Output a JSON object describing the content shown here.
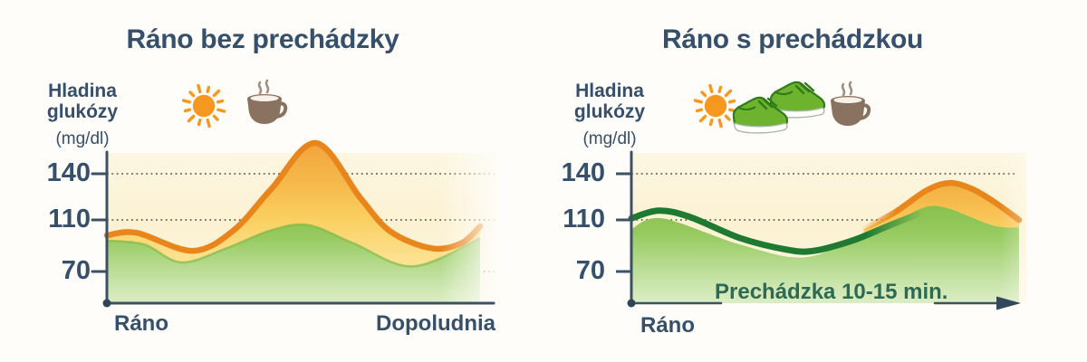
{
  "colors": {
    "title_text": "#36506b",
    "axis_text": "#36506b",
    "axis_line": "#3d5164",
    "annotation_text": "#2d6a55",
    "orange_line": "#e8861c",
    "yellow_fill": "#f9c95c",
    "green_band_fill": "#8ac24f",
    "dark_green_line": "#1e7a31",
    "plot_background_cream": "#fcf2d5",
    "sun_icon_color": "#f6981f",
    "coffee_cup_color": "#8a7260",
    "shoes_color": "#6db32d"
  },
  "charts": [
    {
      "title": "Ráno bez prechádzky",
      "y_axis": {
        "label": [
          "Hladina",
          "glukózy",
          "(mg/dl)"
        ],
        "ticks": [
          "140",
          "110",
          "70"
        ]
      },
      "x_axis": {
        "start_label": "Ráno",
        "end_label": "Dopoludnia"
      },
      "icons": [
        "sun-icon",
        "coffee-cup-icon"
      ],
      "annotation": ""
    },
    {
      "title": "Ráno s prechádzkou",
      "y_axis": {
        "label": [
          "Hladina",
          "glukózy",
          "(mg/dl)"
        ],
        "ticks": [
          "140",
          "110",
          "70"
        ]
      },
      "x_axis": {
        "start_label": "Ráno",
        "end_label": ""
      },
      "icons": [
        "sun-icon",
        "running-shoes-icon",
        "coffee-cup-icon"
      ],
      "annotation": "Prechádzka 10-15 min."
    }
  ],
  "chart_data": [
    {
      "type": "area",
      "title": "Ráno bez prechádzky",
      "ylabel": "Hladina glukózy (mg/dl)",
      "yticks": [
        70,
        110,
        140
      ],
      "ylim": [
        45,
        170
      ],
      "xlabels": [
        "Ráno",
        "Dopoludnia"
      ],
      "grid": "dotted-horizontal",
      "series": [
        {
          "name": "glucose-without-walk",
          "color": "orange",
          "style": "line+area",
          "points": [
            [
              0,
              98
            ],
            [
              8,
              100
            ],
            [
              23,
              86
            ],
            [
              34,
              102
            ],
            [
              44,
              130
            ],
            [
              56,
              160
            ],
            [
              68,
              124
            ],
            [
              76,
              101
            ],
            [
              87,
              88
            ],
            [
              95,
              92
            ],
            [
              100,
              105
            ]
          ]
        },
        {
          "name": "green-zone-band",
          "color": "green",
          "style": "area",
          "points": [
            [
              0,
              94
            ],
            [
              10,
              91
            ],
            [
              20,
              77
            ],
            [
              32,
              88
            ],
            [
              44,
              102
            ],
            [
              54,
              106
            ],
            [
              66,
              92
            ],
            [
              82,
              74
            ],
            [
              100,
              96
            ]
          ]
        }
      ]
    },
    {
      "type": "area",
      "title": "Ráno s prechádzkou",
      "ylabel": "Hladina glukózy (mg/dl)",
      "yticks": [
        70,
        110,
        140
      ],
      "ylim": [
        45,
        170
      ],
      "xlabels": [
        "Ráno"
      ],
      "annotation": "Prechádzka 10-15 min.",
      "grid": "dotted-horizontal",
      "series": [
        {
          "name": "glucose-during-walk",
          "color": "dark-green",
          "style": "line",
          "points": [
            [
              0,
              111
            ],
            [
              7,
              116
            ],
            [
              15,
              112
            ],
            [
              28,
              96
            ],
            [
              40,
              87
            ],
            [
              47,
              86
            ],
            [
              57,
              94
            ],
            [
              66,
              105
            ],
            [
              74,
              114
            ]
          ]
        },
        {
          "name": "glucose-after-breakfast",
          "color": "orange",
          "style": "line+area",
          "points": [
            [
              60,
              103
            ],
            [
              68,
              115
            ],
            [
              76,
              129
            ],
            [
              82,
              134
            ],
            [
              88,
              130
            ],
            [
              94,
              121
            ],
            [
              100,
              110
            ]
          ]
        },
        {
          "name": "green-zone-band",
          "color": "green",
          "style": "area",
          "points": [
            [
              0,
              103
            ],
            [
              8,
              111
            ],
            [
              28,
              91
            ],
            [
              45,
              81
            ],
            [
              60,
              100
            ],
            [
              70,
              112
            ],
            [
              79,
              119
            ],
            [
              93,
              106
            ],
            [
              100,
              104
            ]
          ]
        }
      ]
    }
  ]
}
